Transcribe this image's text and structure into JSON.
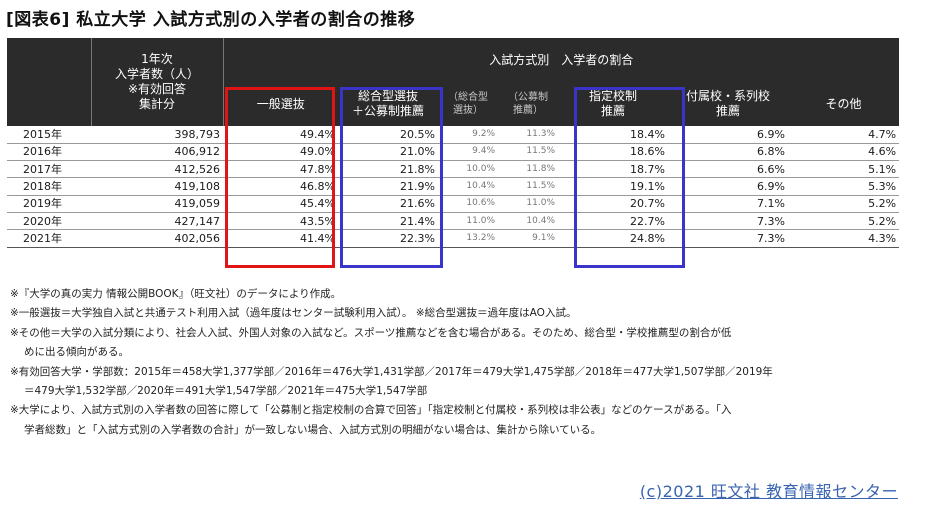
{
  "title": "[図表6] 私立大学 入試方式別の入学者の割合の推移",
  "table": {
    "col_first_year_header": [
      "1年次",
      "入学者数（人）",
      "※有効回答",
      "集計分"
    ],
    "group_header": "入試方式別　入学者の割合",
    "sub_headers": {
      "general": "一般選抜",
      "comprehensive": [
        "総合型選抜",
        "＋公募制推薦"
      ],
      "comprehensive_only": [
        "（総合型",
        "選抜）"
      ],
      "public_rec": [
        "（公募制",
        "推薦）"
      ],
      "designated": [
        "指定校制",
        "推薦"
      ],
      "affiliated": [
        "付属校・系列校",
        "推薦"
      ],
      "other": "その他"
    },
    "rows": [
      {
        "year": "2015年",
        "count": "398,793",
        "general": "49.4%",
        "comp": "20.5%",
        "comp_only": "9.2%",
        "public": "11.3%",
        "designated": "18.4%",
        "affiliated": "6.9%",
        "other": "4.7%"
      },
      {
        "year": "2016年",
        "count": "406,912",
        "general": "49.0%",
        "comp": "21.0%",
        "comp_only": "9.4%",
        "public": "11.5%",
        "designated": "18.6%",
        "affiliated": "6.8%",
        "other": "4.6%"
      },
      {
        "year": "2017年",
        "count": "412,526",
        "general": "47.8%",
        "comp": "21.8%",
        "comp_only": "10.0%",
        "public": "11.8%",
        "designated": "18.7%",
        "affiliated": "6.6%",
        "other": "5.1%"
      },
      {
        "year": "2018年",
        "count": "419,108",
        "general": "46.8%",
        "comp": "21.9%",
        "comp_only": "10.4%",
        "public": "11.5%",
        "designated": "19.1%",
        "affiliated": "6.9%",
        "other": "5.3%"
      },
      {
        "year": "2019年",
        "count": "419,059",
        "general": "45.4%",
        "comp": "21.6%",
        "comp_only": "10.6%",
        "public": "11.0%",
        "designated": "20.7%",
        "affiliated": "7.1%",
        "other": "5.2%"
      },
      {
        "year": "2020年",
        "count": "427,147",
        "general": "43.5%",
        "comp": "21.4%",
        "comp_only": "11.0%",
        "public": "10.4%",
        "designated": "22.7%",
        "affiliated": "7.3%",
        "other": "5.2%"
      },
      {
        "year": "2021年",
        "count": "402,056",
        "general": "41.4%",
        "comp": "22.3%",
        "comp_only": "13.2%",
        "public": "9.1%",
        "designated": "24.8%",
        "affiliated": "7.3%",
        "other": "4.3%"
      }
    ]
  },
  "highlight_colors": {
    "general": "#e01414",
    "comprehensive": "#3a35c8",
    "designated": "#3a35c8"
  },
  "notes": [
    "※『大学の真の実力 情報公開BOOK』（旺文社）のデータにより作成。",
    "※一般選抜＝大学独自入試と共通テスト利用入試（過年度はセンター試験利用入試）。 ※総合型選抜＝過年度はAO入試。",
    "※その他＝大学の入試分類により、社会人入試、外国人対象の入試など。スポーツ推薦などを含む場合がある。そのため、総合型・学校推薦型の割合が低",
    "めに出る傾向がある。",
    "※有効回答大学・学部数：2015年＝458大学1,377学部／2016年＝476大学1,431学部／2017年＝479大学1,475学部／2018年＝477大学1,507学部／2019年",
    "＝479大学1,532学部／2020年＝491大学1,547学部／2021年＝475大学1,547学部",
    "※大学により、入試方式別の入学者数の回答に際して「公募制と指定校制の合算で回答」「指定校制と付属校・系列校は非公表」などのケースがある。「入",
    "学者総数」と「入試方式別の入学者数の合計」が一致しない場合、入試方式別の明細がない場合は、集計から除いている。"
  ],
  "credit": "(c)2021 旺文社 教育情報センター"
}
